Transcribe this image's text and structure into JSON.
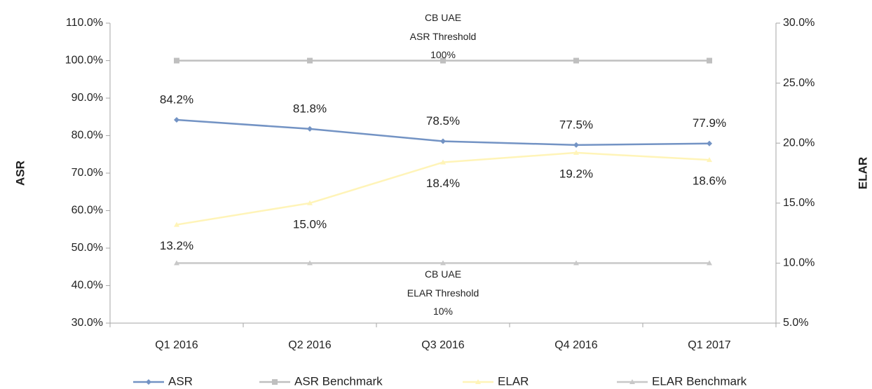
{
  "chart_data": {
    "type": "line",
    "y_label": "ASR",
    "y2_label": "ELAR",
    "categories": [
      "Q1 2016",
      "Q2 2016",
      "Q3 2016",
      "Q4 2016",
      "Q1 2017"
    ],
    "ylim": [
      30,
      110
    ],
    "yticks": [
      {
        "value": 30,
        "label": "30.0%"
      },
      {
        "value": 40,
        "label": "40.0%"
      },
      {
        "value": 50,
        "label": "50.0%"
      },
      {
        "value": 60,
        "label": "60.0%"
      },
      {
        "value": 70,
        "label": "70.0%"
      },
      {
        "value": 80,
        "label": "80.0%"
      },
      {
        "value": 90,
        "label": "90.0%"
      },
      {
        "value": 100,
        "label": "100.0%"
      },
      {
        "value": 110,
        "label": "110.0%"
      }
    ],
    "y2lim": [
      5,
      30
    ],
    "y2ticks": [
      {
        "value": 5,
        "label": "5.0%"
      },
      {
        "value": 10,
        "label": "10.0%"
      },
      {
        "value": 15,
        "label": "15.0%"
      },
      {
        "value": 20,
        "label": "20.0%"
      },
      {
        "value": 25,
        "label": "25.0%"
      },
      {
        "value": 30,
        "label": "30.0%"
      }
    ],
    "series": [
      {
        "name": "ASR",
        "color": "#7393c4",
        "marker": "diamond",
        "values": [
          84.2,
          81.8,
          78.5,
          77.5,
          77.9
        ],
        "value_labels": [
          "84.2%",
          "81.8%",
          "78.5%",
          "77.5%",
          "77.9%"
        ],
        "label_position": "above"
      },
      {
        "name": "ASR Benchmark",
        "color": "#bfbfbf",
        "marker": "square",
        "values": [
          100,
          100,
          100,
          100,
          100
        ]
      },
      {
        "name": "ELAR",
        "color": "#fff4b8",
        "marker": "triangle",
        "axis": "y2",
        "values": [
          13.2,
          15.0,
          18.4,
          19.2,
          18.6
        ],
        "value_labels": [
          "13.2%",
          "15.0%",
          "18.4%",
          "19.2%",
          "18.6%"
        ],
        "label_position": "below"
      },
      {
        "name": "ELAR Benchmark",
        "color": "#c8c8c8",
        "marker": "triangle",
        "axis": "y2",
        "values": [
          10,
          10,
          10,
          10,
          10
        ]
      }
    ],
    "annotations": [
      {
        "lines": [
          "CB UAE",
          "ASR Threshold",
          "100%"
        ],
        "axis": "y",
        "at": 100
      },
      {
        "lines": [
          "CB UAE",
          "ELAR Threshold",
          "10%"
        ],
        "axis": "y2",
        "at": 10
      }
    ],
    "legend": "bottom"
  }
}
